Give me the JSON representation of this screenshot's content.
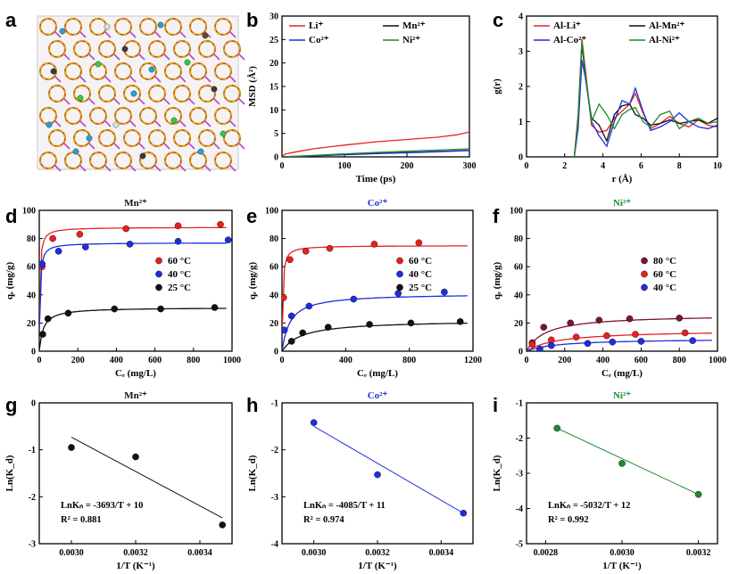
{
  "panel_letters": [
    "a",
    "b",
    "c",
    "d",
    "e",
    "f",
    "g",
    "h",
    "i"
  ],
  "colors": {
    "red": "#e8211d",
    "black": "#111111",
    "blue": "#1f2de0",
    "green": "#1e8a2a",
    "darkred": "#7b1530"
  },
  "image_a": {
    "description_free": true
  },
  "chart_data": [
    {
      "id": "b",
      "type": "line",
      "xlabel": "Time (ps)",
      "ylabel": "MSD (Å²)",
      "xlim": [
        0,
        300
      ],
      "ylim": [
        0,
        30
      ],
      "xticks": [
        "0",
        "100",
        "200",
        "300"
      ],
      "yticks": [
        "0",
        "5",
        "10",
        "15",
        "20",
        "25",
        "30"
      ],
      "legend_position": "top",
      "series": [
        {
          "name": "Li⁺",
          "color": "#e8211d",
          "x": [
            0,
            5,
            20,
            50,
            100,
            150,
            200,
            250,
            280,
            300
          ],
          "y": [
            0,
            0.6,
            1.0,
            1.7,
            2.5,
            3.2,
            3.7,
            4.2,
            4.7,
            5.3
          ]
        },
        {
          "name": "Mn²⁺",
          "color": "#111111",
          "x": [
            0,
            50,
            100,
            150,
            200,
            250,
            300
          ],
          "y": [
            0,
            0.2,
            0.45,
            0.7,
            0.9,
            1.1,
            1.35
          ]
        },
        {
          "name": "Co²⁺",
          "color": "#1f2de0",
          "x": [
            0,
            50,
            100,
            150,
            200,
            250,
            300
          ],
          "y": [
            0,
            0.25,
            0.5,
            0.75,
            0.95,
            1.15,
            1.4
          ]
        },
        {
          "name": "Ni²⁺",
          "color": "#1e8a2a",
          "x": [
            0,
            50,
            100,
            150,
            200,
            250,
            300
          ],
          "y": [
            0,
            0.3,
            0.65,
            0.95,
            1.2,
            1.45,
            1.7
          ]
        }
      ]
    },
    {
      "id": "c",
      "type": "line",
      "xlabel": "r (Å)",
      "ylabel": "g(r)",
      "xlim": [
        0,
        10
      ],
      "ylim": [
        0,
        4
      ],
      "xticks": [
        "0",
        "2",
        "4",
        "6",
        "8",
        "10"
      ],
      "yticks": [
        "0",
        "1",
        "2",
        "3",
        "4"
      ],
      "legend_position": "top",
      "series": [
        {
          "name": "Al-Li⁺",
          "color": "#e8211d",
          "x": [
            2.5,
            2.7,
            2.9,
            3.1,
            3.4,
            3.8,
            4.2,
            4.6,
            5.0,
            5.4,
            5.7,
            6.1,
            6.5,
            7.0,
            7.5,
            8.0,
            8.5,
            9.0,
            9.5,
            10
          ],
          "y": [
            0,
            1.2,
            3.35,
            2.4,
            0.9,
            0.7,
            0.75,
            1.1,
            1.3,
            1.5,
            1.8,
            1.25,
            0.8,
            0.95,
            1.15,
            0.95,
            0.85,
            1.05,
            0.9,
            0.85
          ]
        },
        {
          "name": "Al-Mn²⁺",
          "color": "#111111",
          "x": [
            2.5,
            2.7,
            2.9,
            3.1,
            3.4,
            3.8,
            4.2,
            4.6,
            5.0,
            5.4,
            5.7,
            6.1,
            6.5,
            7.0,
            7.5,
            8.0,
            8.5,
            9.0,
            9.5,
            10
          ],
          "y": [
            0,
            1.0,
            3.2,
            2.2,
            1.1,
            0.9,
            0.45,
            1.2,
            1.45,
            1.5,
            1.2,
            1.1,
            0.9,
            0.95,
            1.05,
            0.95,
            1.0,
            1.05,
            0.95,
            1.1
          ]
        },
        {
          "name": "Al-Co²⁺",
          "color": "#1f2de0",
          "x": [
            2.5,
            2.7,
            2.9,
            3.1,
            3.4,
            3.8,
            4.2,
            4.6,
            5.0,
            5.4,
            5.7,
            6.1,
            6.5,
            7.0,
            7.5,
            8.0,
            8.5,
            9.0,
            9.5,
            10
          ],
          "y": [
            0,
            0.8,
            2.75,
            2.2,
            1.0,
            0.6,
            0.3,
            1.0,
            1.6,
            1.5,
            1.95,
            1.3,
            0.75,
            0.85,
            1.0,
            1.25,
            1.0,
            0.85,
            0.8,
            0.9
          ]
        },
        {
          "name": "Al-Ni²⁺",
          "color": "#1e8a2a",
          "x": [
            2.5,
            2.7,
            2.9,
            3.1,
            3.4,
            3.8,
            4.2,
            4.6,
            5.0,
            5.4,
            5.7,
            6.1,
            6.5,
            7.0,
            7.5,
            8.0,
            8.5,
            9.0,
            9.5,
            10
          ],
          "y": [
            0,
            1.1,
            3.3,
            2.3,
            1.0,
            1.5,
            1.2,
            0.8,
            1.2,
            1.35,
            1.4,
            1.0,
            0.85,
            1.2,
            1.3,
            0.8,
            1.0,
            1.1,
            0.95,
            1.0
          ]
        }
      ]
    },
    {
      "id": "d",
      "type": "scatter",
      "title": "Mn²⁺",
      "title_color": "#111111",
      "xlabel": "Cₑ (mg/L)",
      "ylabel": "qₑ (mg/g)",
      "xlim": [
        0,
        1000
      ],
      "ylim": [
        0,
        100
      ],
      "xticks": [
        "0",
        "200",
        "400",
        "600",
        "800",
        "1000"
      ],
      "yticks": [
        "0",
        "20",
        "40",
        "60",
        "80",
        "100"
      ],
      "series": [
        {
          "name": "60 °C",
          "color": "#e8211d",
          "x": [
            15,
            70,
            210,
            450,
            720,
            940
          ],
          "y": [
            60,
            80,
            83,
            87,
            89,
            90
          ],
          "fit": {
            "qm": 88,
            "k": 0.35
          }
        },
        {
          "name": "40 °C",
          "color": "#1f2de0",
          "x": [
            15,
            100,
            240,
            470,
            720,
            980
          ],
          "y": [
            62,
            71,
            74,
            76,
            78,
            79
          ],
          "fit": {
            "qm": 77,
            "k": 0.3
          }
        },
        {
          "name": "25 °C",
          "color": "#111111",
          "x": [
            18,
            45,
            150,
            390,
            630,
            910
          ],
          "y": [
            12,
            23,
            27,
            30,
            30,
            31
          ],
          "fit": {
            "qm": 31,
            "k": 0.05
          }
        }
      ]
    },
    {
      "id": "e",
      "type": "scatter",
      "title": "Co²⁺",
      "title_color": "#1f2de0",
      "xlabel": "Cₑ (mg/L)",
      "ylabel": "qₑ (mg/g)",
      "xlim": [
        0,
        1200
      ],
      "ylim": [
        0,
        100
      ],
      "xticks": [
        "0",
        "400",
        "800",
        "1200"
      ],
      "yticks": [
        "0",
        "20",
        "40",
        "60",
        "80",
        "100"
      ],
      "series": [
        {
          "name": "60 °C",
          "color": "#e8211d",
          "x": [
            10,
            50,
            150,
            300,
            580,
            860
          ],
          "y": [
            38,
            65,
            71,
            73,
            76,
            77
          ],
          "fit": {
            "qm": 75,
            "k": 0.25
          }
        },
        {
          "name": "40 °C",
          "color": "#1f2de0",
          "x": [
            15,
            60,
            170,
            450,
            730,
            1020
          ],
          "y": [
            15,
            25,
            32,
            37,
            41,
            42
          ],
          "fit": {
            "qm": 41,
            "k": 0.02
          }
        },
        {
          "name": "25 °C",
          "color": "#111111",
          "x": [
            60,
            130,
            290,
            550,
            810,
            1120
          ],
          "y": [
            7,
            13,
            17,
            19,
            20,
            21
          ],
          "fit": {
            "qm": 22,
            "k": 0.008
          }
        }
      ]
    },
    {
      "id": "f",
      "type": "scatter",
      "title": "Ni²⁺",
      "title_color": "#1e8a2a",
      "xlabel": "Cₑ (mg/L)",
      "ylabel": "qₑ (mg/g)",
      "xlim": [
        0,
        1000
      ],
      "ylim": [
        0,
        100
      ],
      "xticks": [
        "0",
        "200",
        "400",
        "600",
        "800",
        "1000"
      ],
      "yticks": [
        "0",
        "20",
        "40",
        "60",
        "80",
        "100"
      ],
      "series": [
        {
          "name": "80 °C",
          "color": "#7b1530",
          "x": [
            30,
            90,
            230,
            380,
            540,
            800
          ],
          "y": [
            6,
            17,
            20,
            22,
            23,
            23.5
          ],
          "fit": {
            "qm": 26,
            "k": 0.01
          }
        },
        {
          "name": "60 °C",
          "color": "#e8211d",
          "x": [
            30,
            130,
            260,
            420,
            570,
            830
          ],
          "y": [
            5,
            8,
            10,
            11,
            12,
            13
          ],
          "fit": {
            "qm": 15,
            "k": 0.006
          }
        },
        {
          "name": "40 °C",
          "color": "#1f2de0",
          "x": [
            70,
            130,
            320,
            450,
            600,
            870
          ],
          "y": [
            1.5,
            4,
            5.5,
            6.5,
            7,
            7.5
          ],
          "fit": {
            "qm": 9,
            "k": 0.006
          }
        }
      ]
    },
    {
      "id": "g",
      "type": "scatter",
      "title": "Mn²⁺",
      "title_color": "#111111",
      "xlabel": "1/T (K⁻¹)",
      "ylabel": "Ln(K_d)",
      "xlim": [
        0.0029,
        0.0035
      ],
      "ylim": [
        -3,
        0
      ],
      "xticks": [
        "0.0030",
        "0.0032",
        "0.0034"
      ],
      "yticks": [
        "-3",
        "-2",
        "-1",
        "0"
      ],
      "series": [
        {
          "name": "",
          "color": "#111111",
          "x": [
            0.003,
            0.0032,
            0.00347
          ],
          "y": [
            -0.95,
            -1.15,
            -2.6
          ],
          "fit_line": {
            "x": [
              0.003,
              0.00347
            ],
            "y": [
              -0.73,
              -2.45
            ],
            "color": "#111111"
          }
        }
      ],
      "equation": "LnKₙ = -3693/T + 10",
      "r2": "R² = 0.881"
    },
    {
      "id": "h",
      "type": "scatter",
      "title": "Co²⁺",
      "title_color": "#1f2de0",
      "xlabel": "1/T (K⁻¹)",
      "ylabel": "Ln(K_d)",
      "xlim": [
        0.0029,
        0.0035
      ],
      "ylim": [
        -4,
        -1
      ],
      "xticks": [
        "0.0030",
        "0.0032",
        "0.0034"
      ],
      "yticks": [
        "-4",
        "-3",
        "-2",
        "-1"
      ],
      "series": [
        {
          "name": "",
          "color": "#1f2de0",
          "x": [
            0.003,
            0.0032,
            0.00347
          ],
          "y": [
            -1.42,
            -2.53,
            -3.35
          ],
          "fit_line": {
            "x": [
              0.003,
              0.00347
            ],
            "y": [
              -1.5,
              -3.35
            ],
            "color": "#1f2de0"
          }
        }
      ],
      "equation": "LnKₙ = -4085/T + 11",
      "r2": "R² = 0.974"
    },
    {
      "id": "i",
      "type": "scatter",
      "title": "Ni²⁺",
      "title_color": "#1e8a2a",
      "xlabel": "1/T (K⁻¹)",
      "ylabel": "Ln(K_d)",
      "xlim": [
        0.00275,
        0.00325
      ],
      "ylim": [
        -5,
        -1
      ],
      "xticks": [
        "0.0028",
        "0.0030",
        "0.0032"
      ],
      "yticks": [
        "-5",
        "-4",
        "-3",
        "-2",
        "-1"
      ],
      "series": [
        {
          "name": "",
          "color": "#1e8a2a",
          "x": [
            0.00283,
            0.003,
            0.0032
          ],
          "y": [
            -1.72,
            -2.72,
            -3.6
          ],
          "fit_line": {
            "x": [
              0.00283,
              0.0032
            ],
            "y": [
              -1.72,
              -3.6
            ],
            "color": "#1e8a2a"
          }
        }
      ],
      "equation": "LnKₙ = -5032/T + 12",
      "r2": "R² = 0.992"
    }
  ]
}
